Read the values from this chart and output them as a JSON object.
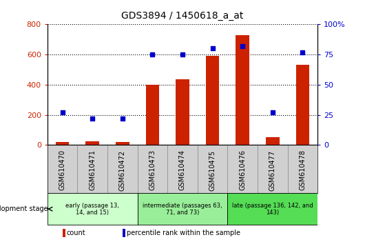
{
  "title": "GDS3894 / 1450618_a_at",
  "samples": [
    "GSM610470",
    "GSM610471",
    "GSM610472",
    "GSM610473",
    "GSM610474",
    "GSM610475",
    "GSM610476",
    "GSM610477",
    "GSM610478"
  ],
  "counts": [
    20,
    25,
    20,
    400,
    435,
    590,
    730,
    50,
    530
  ],
  "percentile_ranks": [
    27,
    22,
    22,
    75,
    75,
    80,
    82,
    27,
    77
  ],
  "ylim_left": [
    0,
    800
  ],
  "ylim_right": [
    0,
    100
  ],
  "yticks_left": [
    0,
    200,
    400,
    600,
    800
  ],
  "yticks_right": [
    0,
    25,
    50,
    75,
    100
  ],
  "bar_color": "#cc2200",
  "dot_color": "#0000cc",
  "grid_color": "#000000",
  "groups": [
    {
      "label": "early (passage 13,\n14, and 15)",
      "start": 0,
      "end": 3,
      "color": "#ccffcc"
    },
    {
      "label": "intermediate (passages 63,\n71, and 73)",
      "start": 3,
      "end": 6,
      "color": "#99ee99"
    },
    {
      "label": "late (passage 136, 142, and\n143)",
      "start": 6,
      "end": 9,
      "color": "#55dd55"
    }
  ],
  "dev_stage_label": "development stage",
  "legend_count_label": "count",
  "legend_pct_label": "percentile rank within the sample",
  "tick_bg_color": "#d0d0d0",
  "plot_bg_color": "#ffffff"
}
